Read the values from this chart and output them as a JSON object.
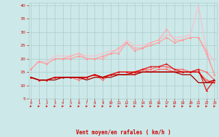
{
  "x": [
    0,
    1,
    2,
    3,
    4,
    5,
    6,
    7,
    8,
    9,
    10,
    11,
    12,
    13,
    14,
    15,
    16,
    17,
    18,
    19,
    20,
    21,
    22,
    23
  ],
  "series": [
    {
      "name": "line_triangle_pale",
      "color": "#ffbbcc",
      "lw": 0.8,
      "marker": null,
      "ms": 0,
      "y": [
        16,
        19,
        19,
        21,
        21,
        21,
        22,
        21,
        21,
        22,
        23,
        23,
        27,
        25,
        25,
        26,
        27,
        29,
        28,
        28,
        29,
        40,
        23,
        19
      ]
    },
    {
      "name": "line_pale_circle",
      "color": "#ffaaaa",
      "lw": 0.8,
      "marker": "o",
      "ms": 1.8,
      "y": [
        16,
        19,
        18,
        20,
        20,
        21,
        22,
        20,
        20,
        20,
        22,
        24,
        26,
        24,
        24,
        26,
        27,
        31,
        27,
        27,
        28,
        28,
        23,
        14
      ]
    },
    {
      "name": "line_pale_triangle",
      "color": "#ff9999",
      "lw": 0.8,
      "marker": "^",
      "ms": 1.8,
      "y": [
        16,
        19,
        18,
        20,
        20,
        20,
        21,
        20,
        20,
        21,
        22,
        22,
        26,
        23,
        24,
        25,
        26,
        28,
        26,
        27,
        28,
        28,
        22,
        14
      ]
    },
    {
      "name": "line_medium_up",
      "color": "#ff6666",
      "lw": 0.9,
      "marker": "^",
      "ms": 1.8,
      "y": [
        13,
        12,
        12,
        13,
        13,
        13,
        13,
        13,
        14,
        13,
        14,
        15,
        15,
        15,
        16,
        16,
        17,
        17,
        16,
        16,
        15,
        16,
        15,
        12
      ]
    },
    {
      "name": "line_medium_down",
      "color": "#ff6666",
      "lw": 0.9,
      "marker": "v",
      "ms": 1.8,
      "y": [
        13,
        12,
        12,
        13,
        13,
        13,
        12,
        13,
        14,
        12,
        14,
        15,
        15,
        14,
        16,
        15,
        16,
        16,
        15,
        15,
        15,
        15,
        12,
        11
      ]
    },
    {
      "name": "line_dark_up",
      "color": "#dd2222",
      "lw": 1.0,
      "marker": "^",
      "ms": 1.8,
      "y": [
        13,
        12,
        12,
        13,
        13,
        13,
        13,
        13,
        14,
        13,
        14,
        15,
        15,
        15,
        16,
        17,
        17,
        18,
        16,
        15,
        15,
        16,
        8,
        12
      ]
    },
    {
      "name": "line_dark_flat",
      "color": "#cc0000",
      "lw": 1.0,
      "marker": null,
      "ms": 0,
      "y": [
        13,
        12,
        12,
        13,
        13,
        13,
        13,
        13,
        14,
        13,
        14,
        14,
        14,
        15,
        15,
        15,
        15,
        15,
        15,
        15,
        15,
        15,
        11,
        11
      ]
    },
    {
      "name": "line_darkest",
      "color": "#aa0000",
      "lw": 1.0,
      "marker": null,
      "ms": 0,
      "y": [
        13,
        12,
        12,
        12,
        13,
        13,
        13,
        12,
        13,
        13,
        13,
        14,
        14,
        14,
        15,
        15,
        15,
        15,
        15,
        14,
        14,
        11,
        11,
        12
      ]
    }
  ],
  "xlim": [
    -0.3,
    23.3
  ],
  "ylim": [
    5,
    41
  ],
  "yticks": [
    5,
    10,
    15,
    20,
    25,
    30,
    35,
    40
  ],
  "xticks": [
    0,
    1,
    2,
    3,
    4,
    5,
    6,
    7,
    8,
    9,
    10,
    11,
    12,
    13,
    14,
    15,
    16,
    17,
    18,
    19,
    20,
    21,
    22,
    23
  ],
  "xlabel": "Vent moyen/en rafales ( km/h )",
  "background_color": "#cce8e8",
  "grid_color": "#aacccc",
  "tick_color": "#cc0000",
  "label_color": "#cc0000"
}
